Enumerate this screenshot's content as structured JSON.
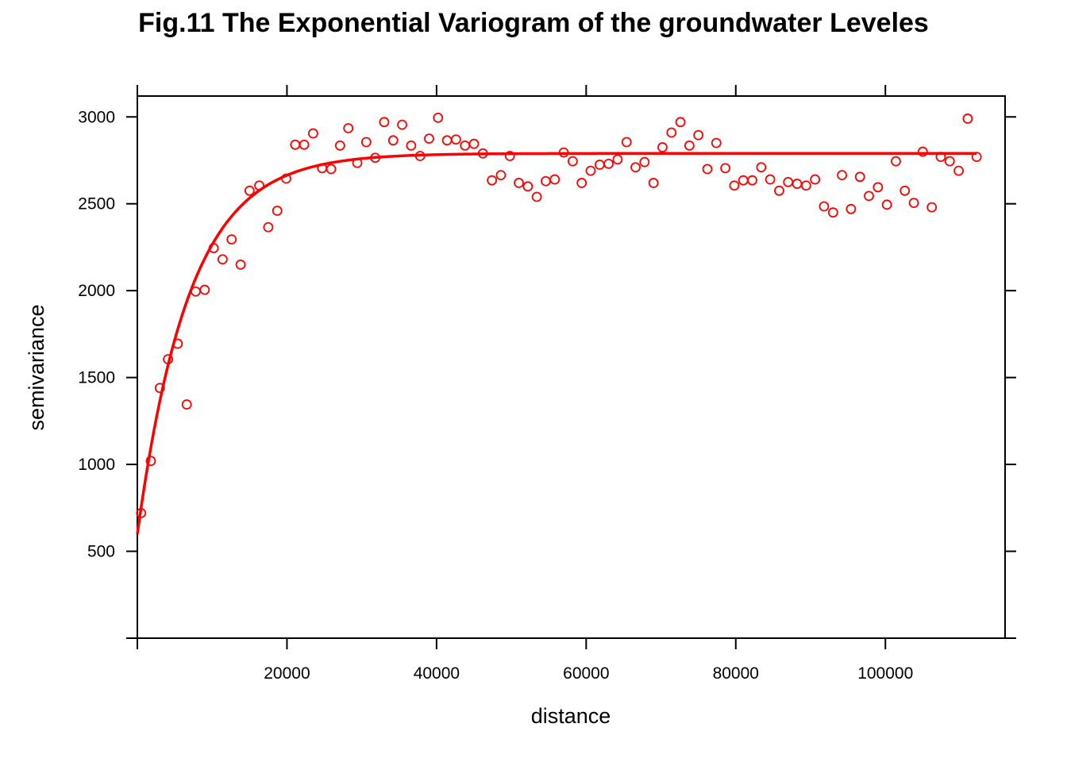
{
  "chart_data": {
    "type": "scatter",
    "title": "Fig.11 The Exponential Variogram of the groundwater Leveles",
    "xlabel": "distance",
    "ylabel": "semivariance",
    "xlim": [
      0,
      116000
    ],
    "ylim": [
      0,
      3120
    ],
    "x_ticks": [
      20000,
      40000,
      60000,
      80000,
      100000
    ],
    "y_ticks": [
      500,
      1000,
      1500,
      2000,
      2500,
      3000
    ],
    "x_tick_labels": [
      "20000",
      "40000",
      "60000",
      "80000",
      "100000"
    ],
    "y_tick_labels": [
      "500",
      "1000",
      "1500",
      "2000",
      "2500",
      "3000"
    ],
    "grid": false,
    "series": [
      {
        "type": "scatter",
        "color": "#FF0000",
        "marker": "open-circle",
        "x": [
          500,
          1800,
          3000,
          4100,
          5400,
          6600,
          7800,
          9000,
          10200,
          11400,
          12600,
          13800,
          15000,
          16300,
          17500,
          18700,
          19900,
          21100,
          22300,
          23500,
          24700,
          25900,
          27100,
          28200,
          29400,
          30600,
          31800,
          33000,
          34200,
          35400,
          36600,
          37800,
          39000,
          40200,
          41400,
          42600,
          43800,
          45000,
          46200,
          47400,
          48600,
          49800,
          51000,
          52200,
          53400,
          54600,
          55800,
          57000,
          58200,
          59400,
          60600,
          61800,
          63000,
          64200,
          65400,
          66600,
          67800,
          69000,
          70200,
          71400,
          72600,
          73800,
          75000,
          76200,
          77400,
          78600,
          79800,
          81000,
          82200,
          83400,
          84600,
          85800,
          87000,
          88200,
          89400,
          90600,
          91800,
          93000,
          94200,
          95400,
          96600,
          97800,
          99000,
          100200,
          101400,
          102600,
          103800,
          105000,
          106200,
          107400,
          108600,
          109800,
          111000,
          112200
        ],
        "y": [
          720,
          1020,
          1440,
          1605,
          1695,
          1345,
          1995,
          2005,
          2245,
          2180,
          2295,
          2150,
          2575,
          2605,
          2365,
          2460,
          2645,
          2840,
          2840,
          2905,
          2705,
          2700,
          2835,
          2935,
          2735,
          2855,
          2765,
          2970,
          2865,
          2955,
          2835,
          2775,
          2875,
          2995,
          2865,
          2870,
          2835,
          2845,
          2790,
          2635,
          2665,
          2775,
          2620,
          2600,
          2540,
          2630,
          2640,
          2795,
          2745,
          2620,
          2690,
          2725,
          2730,
          2755,
          2855,
          2710,
          2740,
          2620,
          2825,
          2910,
          2970,
          2835,
          2895,
          2700,
          2850,
          2705,
          2605,
          2635,
          2635,
          2710,
          2640,
          2575,
          2625,
          2615,
          2605,
          2640,
          2485,
          2450,
          2665,
          2470,
          2655,
          2545,
          2595,
          2495,
          2745,
          2575,
          2505,
          2800,
          2480,
          2770,
          2745,
          2690,
          2990,
          2770
        ]
      },
      {
        "type": "line",
        "color": "#FF0000",
        "model": "exponential",
        "nugget": 600,
        "psill": 2190,
        "range": 7000,
        "x_range": [
          0,
          112200
        ]
      }
    ]
  }
}
